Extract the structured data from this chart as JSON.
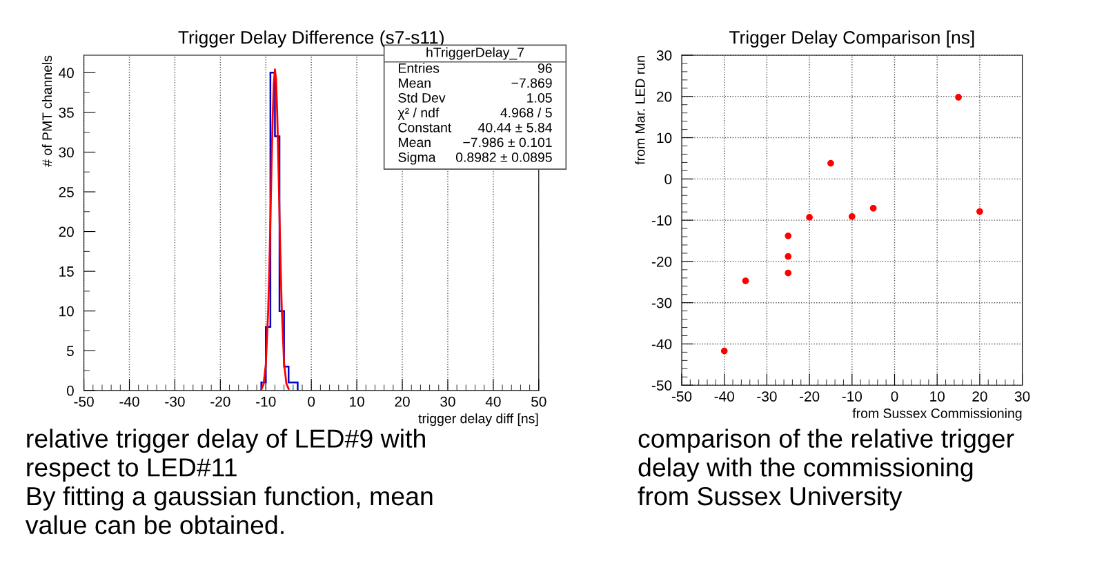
{
  "chart_data": [
    {
      "type": "histogram",
      "title": "Trigger Delay Difference (s7-s11)",
      "xlabel": "trigger delay diff [ns]",
      "ylabel": "# of PMT channels",
      "xlim": [
        -50,
        50
      ],
      "xticks": [
        -50,
        -40,
        -30,
        -20,
        -10,
        0,
        10,
        20,
        30,
        40,
        50
      ],
      "ylim": [
        0,
        42.2
      ],
      "yticks": [
        0,
        5,
        10,
        15,
        20,
        25,
        30,
        35,
        40
      ],
      "grid": "x",
      "series": [
        {
          "type": "histogram",
          "color": "#0000cc",
          "bins": [
            -11,
            -10,
            -9,
            -8,
            -7,
            -6,
            -5,
            -4,
            -3
          ],
          "values": [
            1,
            8,
            40,
            32,
            10,
            3,
            1,
            1
          ]
        },
        {
          "type": "line",
          "color": "#ff0000",
          "x": [
            -11,
            -10.5,
            -10,
            -9.5,
            -9.25,
            -9,
            -8.75,
            -8.5,
            -8.25,
            -8,
            -7.75,
            -7.5,
            -7.25,
            -7,
            -6.75,
            -6.5,
            -6,
            -5.5,
            -5
          ],
          "values": [
            0.1,
            0.8,
            3.3,
            9.8,
            15.0,
            21.4,
            28.2,
            34.3,
            38.7,
            40.4,
            39.1,
            34.9,
            28.9,
            22.1,
            15.7,
            10.3,
            3.5,
            0.9,
            0.2
          ]
        }
      ],
      "annotations": [
        "hTriggerDelay_7",
        "Entries",
        "96",
        "Mean",
        "−7.869",
        "Std Dev",
        "1.05",
        "χ² / ndf",
        "4.968 / 5",
        "Constant",
        "40.44 ± 5.84",
        "Mean",
        "−7.986 ± 0.101",
        "Sigma",
        "0.8982 ± 0.0895",
        "relative trigger delay of LED#9 with\nrespect to LED#11\nBy fitting a gaussian function, mean\nvalue can be obtained."
      ]
    },
    {
      "type": "scatter",
      "title": "Trigger Delay Comparison [ns]",
      "xlabel": "from Sussex Commissioning",
      "ylabel": "from Mar. LED run",
      "xlim": [
        -50,
        30
      ],
      "xticks": [
        -50,
        -40,
        -30,
        -20,
        -10,
        0,
        10,
        20,
        30
      ],
      "ylim": [
        -50,
        30
      ],
      "yticks": [
        -50,
        -40,
        -30,
        -20,
        -10,
        0,
        10,
        20,
        30
      ],
      "grid": true,
      "marker": "circle",
      "series": [
        {
          "color": "#ff0000",
          "x": [
            -40,
            -35,
            -25,
            -25,
            -25,
            -20,
            -15,
            -10,
            -5,
            15,
            20
          ],
          "values": [
            -41.7,
            -24.7,
            -13.8,
            -18.8,
            -22.8,
            -9.3,
            3.8,
            -9.1,
            -7.1,
            19.8,
            -7.9
          ]
        }
      ],
      "annotations": [
        "comparison of the relative trigger\ndelay with the commissioning\nfrom Sussex University"
      ]
    }
  ]
}
